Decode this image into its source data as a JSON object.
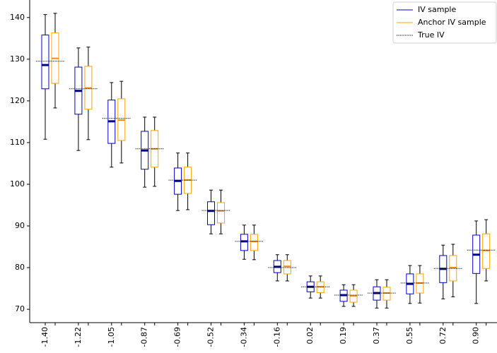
{
  "chart_data": {
    "type": "boxplot",
    "categories": [
      "-1.40",
      "-1.22",
      "-1.05",
      "-0.87",
      "-0.69",
      "-0.52",
      "-0.34",
      "-0.16",
      "0.02",
      "0.19",
      "0.37",
      "0.55",
      "0.72",
      "0.90"
    ],
    "series": [
      {
        "name": "IV sample",
        "color": "#0000cc",
        "median_color": "#00008b",
        "whislo": [
          110.8,
          108.1,
          104.1,
          99.3,
          93.7,
          88.1,
          82.0,
          76.8,
          72.7,
          70.7,
          70.3,
          71.4,
          72.5,
          71.4
        ],
        "q1": [
          122.9,
          116.8,
          109.8,
          103.6,
          97.6,
          90.3,
          84.1,
          78.8,
          74.2,
          71.9,
          72.2,
          73.7,
          76.4,
          78.6
        ],
        "med": [
          128.6,
          122.4,
          115.1,
          108.1,
          100.8,
          93.6,
          86.3,
          80.2,
          75.4,
          73.4,
          73.9,
          76.1,
          79.7,
          83.1
        ],
        "q3": [
          135.8,
          128.1,
          120.2,
          112.7,
          103.9,
          95.8,
          88.0,
          81.7,
          76.6,
          74.6,
          75.4,
          78.5,
          82.9,
          87.8
        ],
        "whishi": [
          140.7,
          132.7,
          124.4,
          116.1,
          107.5,
          98.6,
          90.2,
          83.1,
          78.0,
          75.9,
          77.1,
          80.5,
          85.4,
          91.2
        ]
      },
      {
        "name": "Anchor IV sample",
        "color": "#ffa500",
        "median_color": "#ff8c00",
        "whislo": [
          118.3,
          110.7,
          105.1,
          99.5,
          93.9,
          88.1,
          81.9,
          76.8,
          72.7,
          70.7,
          70.3,
          71.5,
          73.0,
          76.8
        ],
        "q1": [
          124.2,
          118.0,
          110.5,
          104.1,
          97.8,
          90.7,
          84.1,
          78.5,
          74.0,
          71.7,
          72.2,
          73.9,
          76.8,
          79.8
        ],
        "med": [
          130.2,
          123.1,
          115.4,
          108.5,
          101.0,
          93.6,
          86.3,
          80.3,
          75.4,
          73.2,
          73.9,
          76.3,
          80.0,
          84.1
        ],
        "q3": [
          136.3,
          128.3,
          120.5,
          112.9,
          104.1,
          95.6,
          88.0,
          81.7,
          76.6,
          74.6,
          75.3,
          78.5,
          82.9,
          88.1
        ],
        "whishi": [
          141.0,
          132.9,
          124.7,
          116.1,
          107.5,
          98.6,
          90.2,
          83.1,
          78.0,
          75.9,
          77.1,
          80.5,
          85.6,
          91.5
        ]
      }
    ],
    "reference": {
      "name": "True IV",
      "color": "#000000",
      "style": "dotted",
      "values": [
        129.5,
        122.9,
        115.8,
        108.5,
        101.0,
        93.7,
        86.3,
        80.0,
        75.4,
        73.4,
        73.9,
        76.3,
        79.8,
        84.2
      ]
    },
    "ylim": [
      66.8,
      144.2
    ],
    "yticks": [
      70,
      80,
      90,
      100,
      110,
      120,
      130,
      140
    ],
    "legend": "upper right"
  }
}
